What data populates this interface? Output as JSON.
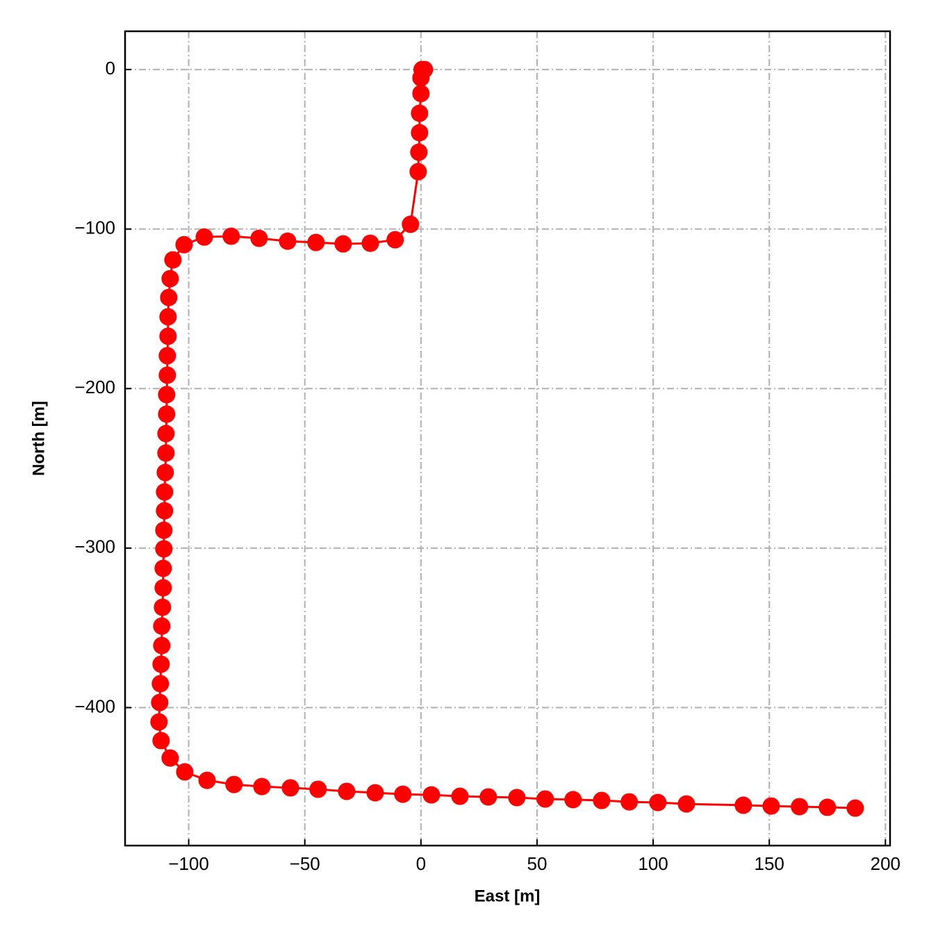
{
  "chart_data": {
    "type": "line",
    "xlabel": "East [m]",
    "ylabel": "North [m]",
    "color": "#ff0000",
    "markers": true,
    "grid": true,
    "xlim": [
      -127.4,
      202
    ],
    "ylim": [
      -486.5,
      24
    ],
    "xticks": [
      {
        "value": -100,
        "label": "−100"
      },
      {
        "value": -50,
        "label": "−50"
      },
      0,
      50,
      100,
      150,
      200
    ],
    "yticks": [
      0,
      {
        "value": -100,
        "label": "−100"
      },
      {
        "value": -200,
        "label": "−200"
      },
      {
        "value": -300,
        "label": "−300"
      },
      {
        "value": -400,
        "label": "−400"
      }
    ],
    "x": [
      1.5,
      0.5,
      0,
      0,
      -0.6,
      -0.6,
      -0.9,
      -1.2,
      -4.5,
      -11.1,
      -21.8,
      -33.5,
      -45.2,
      -57.4,
      -69.7,
      -81.7,
      -93.3,
      -102,
      -106.8,
      -108,
      -108.6,
      -108.9,
      -108.9,
      -109.2,
      -109.2,
      -109.5,
      -109.5,
      -109.8,
      -109.8,
      -110.1,
      -110.4,
      -110.4,
      -110.7,
      -110.7,
      -111,
      -111,
      -111.3,
      -111.6,
      -111.6,
      -111.9,
      -112.2,
      -112.5,
      -112.8,
      -111.9,
      -108,
      -101.7,
      -92.1,
      -80.5,
      -68.5,
      -56.2,
      -44.3,
      -32,
      -19.7,
      -7.8,
      4.5,
      16.8,
      29,
      41.3,
      53.5,
      65.5,
      77.8,
      89.7,
      102,
      114.3,
      138.8,
      150.8,
      163,
      175,
      187
    ],
    "values": [
      0,
      0,
      -5.2,
      -15,
      -27.4,
      -39.6,
      -51.8,
      -64,
      -97,
      -106.7,
      -108.9,
      -109.3,
      -108.4,
      -107.6,
      -105.8,
      -104.5,
      -105,
      -109.8,
      -119.3,
      -131.1,
      -142.9,
      -155,
      -167.2,
      -179.4,
      -191.6,
      -203.8,
      -216,
      -228.2,
      -240.4,
      -252.6,
      -264.8,
      -276.6,
      -288.8,
      -300.5,
      -312.7,
      -324.9,
      -337.1,
      -348.9,
      -361.1,
      -372.8,
      -385,
      -396.8,
      -409,
      -420.7,
      -431.6,
      -440.3,
      -445.6,
      -448.2,
      -449.5,
      -450.3,
      -451.2,
      -452.5,
      -453.4,
      -454.3,
      -454.7,
      -455.6,
      -456,
      -456.4,
      -457.3,
      -457.7,
      -458.2,
      -459.1,
      -459.5,
      -460.4,
      -461.2,
      -461.7,
      -462.1,
      -462.5,
      -463
    ]
  }
}
